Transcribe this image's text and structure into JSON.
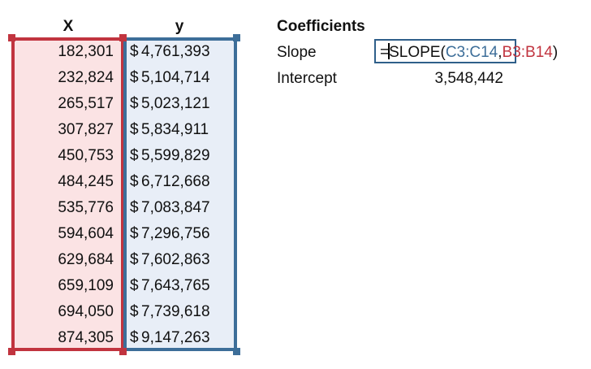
{
  "headers": {
    "x": "X",
    "y": "y"
  },
  "x_values": [
    "182,301",
    "232,824",
    "265,517",
    "307,827",
    "450,753",
    "484,245",
    "535,776",
    "594,604",
    "629,684",
    "659,109",
    "694,050",
    "874,305"
  ],
  "y_currency": "$",
  "y_values": [
    "4,761,393",
    "5,104,714",
    "5,023,121",
    "5,834,911",
    "5,599,829",
    "6,712,668",
    "7,083,847",
    "7,296,756",
    "7,602,863",
    "7,643,765",
    "7,739,618",
    "9,147,263"
  ],
  "coefficients": {
    "title": "Coefficients",
    "slope_label": "Slope",
    "intercept_label": "Intercept",
    "intercept_value": "3,548,442",
    "formula": {
      "prefix": "=",
      "function": "SLOPE(",
      "arg1": "C3:C14",
      "sep": ",",
      "arg2": "B3:B14",
      "suffix": ")"
    }
  },
  "colors": {
    "x_range": "#c1343f",
    "y_range": "#3d6e99",
    "x_fill": "#fbe3e4",
    "y_fill": "#e8eef7"
  }
}
